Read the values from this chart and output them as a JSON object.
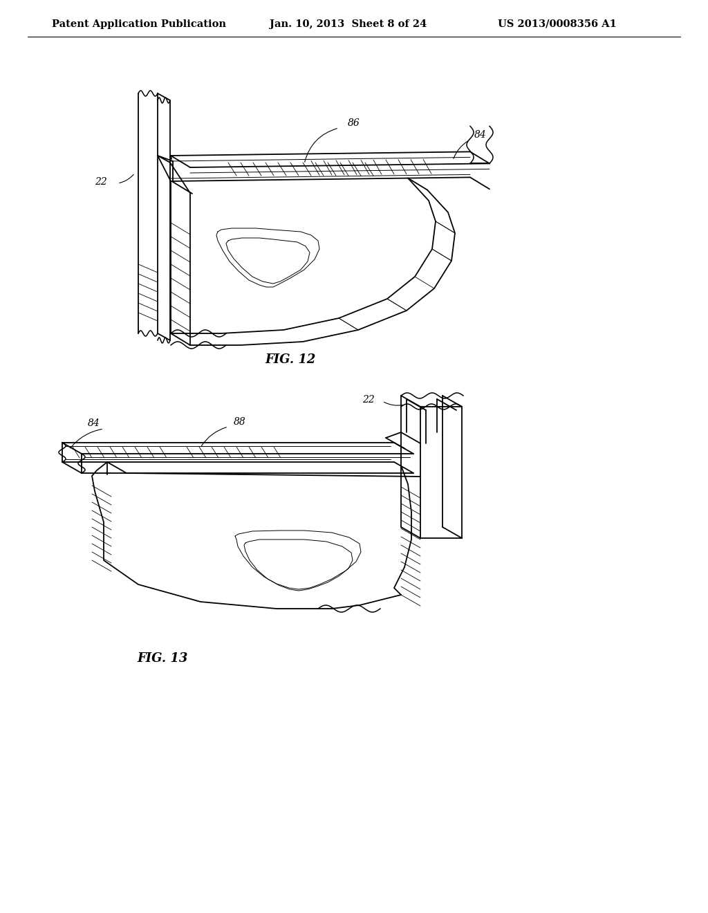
{
  "background_color": "#ffffff",
  "header_left": "Patent Application Publication",
  "header_center": "Jan. 10, 2013  Sheet 8 of 24",
  "header_right": "US 2013/0008356 A1",
  "header_fontsize": 10.5,
  "fig12_caption": "FIG. 12",
  "fig13_caption": "FIG. 13",
  "line_color": "#000000",
  "label_fontsize": 10,
  "caption_fontsize": 13
}
